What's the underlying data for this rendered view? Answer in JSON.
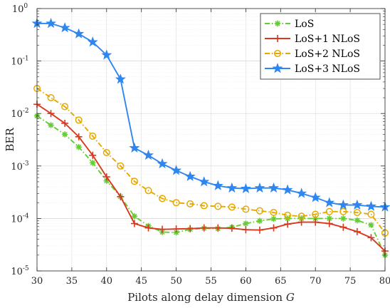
{
  "chart_data": {
    "type": "line",
    "title": "",
    "xlabel": "Pilots along delay dimension",
    "xlabel_symbol": "G",
    "ylabel": "BER",
    "xlim": [
      30,
      80
    ],
    "ylim": [
      1e-05,
      1
    ],
    "yscale": "log",
    "x_ticks": [
      30,
      35,
      40,
      45,
      50,
      55,
      60,
      65,
      70,
      75,
      80
    ],
    "y_ticks": [
      {
        "value": 1e-05,
        "base": "10",
        "exp": "-5"
      },
      {
        "value": 0.0001,
        "base": "10",
        "exp": "-4"
      },
      {
        "value": 0.001,
        "base": "10",
        "exp": "-3"
      },
      {
        "value": 0.01,
        "base": "10",
        "exp": "-2"
      },
      {
        "value": 0.1,
        "base": "10",
        "exp": "-1"
      },
      {
        "value": 1,
        "base": "10",
        "exp": "0"
      }
    ],
    "grid": true,
    "legend_position": "top-right",
    "x": [
      30,
      32,
      34,
      36,
      38,
      40,
      42,
      44,
      46,
      48,
      50,
      52,
      54,
      56,
      58,
      60,
      62,
      64,
      66,
      68,
      70,
      72,
      74,
      76,
      78,
      80
    ],
    "series": [
      {
        "name": "LoS",
        "color": "#66cc33",
        "dash": "dashdot",
        "marker": "asterisk",
        "values": [
          0.009,
          0.006,
          0.004,
          0.0023,
          0.00115,
          0.00052,
          0.00026,
          0.00011,
          7.2e-05,
          5.5e-05,
          5.4e-05,
          6.2e-05,
          6.5e-05,
          6.4e-05,
          6.8e-05,
          8e-05,
          9e-05,
          9.8e-05,
          0.0001,
          0.0001,
          0.0001,
          0.0001,
          0.0001,
          9.2e-05,
          7.5e-05,
          2e-05
        ]
      },
      {
        "name": "LoS+1 NLoS",
        "color": "#d9381e",
        "dash": "solid",
        "marker": "plus",
        "values": [
          0.015,
          0.01,
          0.0065,
          0.0036,
          0.0016,
          0.00062,
          0.00026,
          8e-05,
          6.6e-05,
          6.2e-05,
          6.3e-05,
          6.4e-05,
          6.6e-05,
          6.6e-05,
          6.5e-05,
          6.1e-05,
          6e-05,
          6.6e-05,
          7.8e-05,
          8.5e-05,
          8.5e-05,
          8e-05,
          6.8e-05,
          5.6e-05,
          4.3e-05,
          2.4e-05
        ]
      },
      {
        "name": "LoS+2 NLoS",
        "color": "#e6a800",
        "dash": "dashdot",
        "marker": "circle",
        "values": [
          0.03,
          0.02,
          0.0135,
          0.0075,
          0.0037,
          0.0018,
          0.001,
          0.00051,
          0.00034,
          0.00024,
          0.0002,
          0.00019,
          0.000175,
          0.00017,
          0.000165,
          0.00015,
          0.00014,
          0.00013,
          0.000115,
          0.00011,
          0.00012,
          0.000135,
          0.000135,
          0.00013,
          0.00012,
          5.3e-05
        ]
      },
      {
        "name": "LoS+3 NLoS",
        "color": "#2e86f0",
        "dash": "solid",
        "marker": "star",
        "values": [
          0.52,
          0.52,
          0.43,
          0.33,
          0.23,
          0.13,
          0.045,
          0.0022,
          0.0016,
          0.0011,
          0.00082,
          0.00063,
          0.0005,
          0.00042,
          0.00038,
          0.00037,
          0.00038,
          0.00038,
          0.00035,
          0.0003,
          0.00025,
          0.0002,
          0.00018,
          0.00018,
          0.00017,
          0.000165
        ]
      }
    ]
  }
}
